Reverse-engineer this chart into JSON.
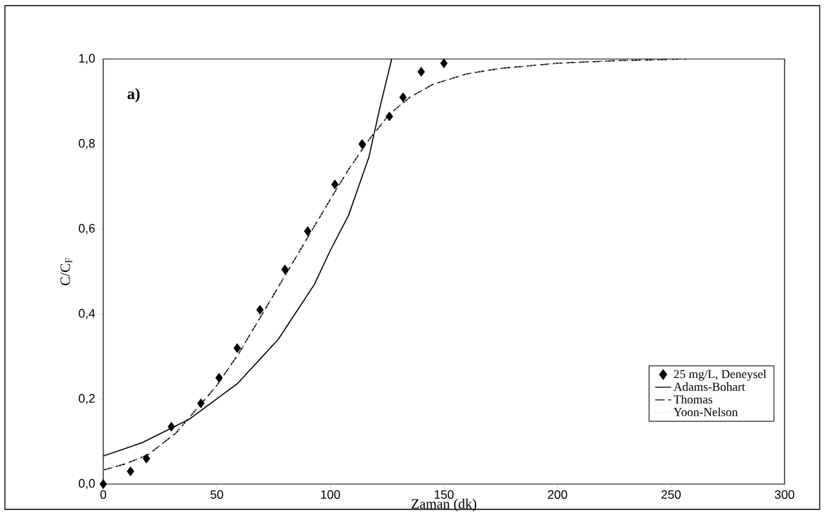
{
  "chart_data": {
    "type": "line",
    "xlabel": "Zaman (dk)",
    "ylabel": "C/C$_{F}$",
    "annotations": [
      "a)"
    ],
    "xlim": [
      0,
      300
    ],
    "ylim": [
      0,
      1
    ],
    "xticks": [
      0,
      50,
      100,
      150,
      200,
      250,
      300
    ],
    "yticks": [
      {
        "value": 0,
        "label": "0,0"
      },
      {
        "value": 0.2,
        "label": "0,2"
      },
      {
        "value": 0.4,
        "label": "0,4"
      },
      {
        "value": 0.6,
        "label": "0,6"
      },
      {
        "value": 0.8,
        "label": "0,8"
      },
      {
        "value": 1,
        "label": "1,0"
      }
    ],
    "legend": "bottom right",
    "series": [
      {
        "name": "25 mg/L, Deneysel",
        "type": "scatter",
        "marker": "diamond",
        "color": "#000000",
        "x": [
          0,
          12,
          19,
          30,
          43,
          51,
          59,
          69,
          80,
          90,
          102,
          114,
          126,
          132,
          140,
          150
        ],
        "values": [
          0.0,
          0.03,
          0.06,
          0.135,
          0.19,
          0.25,
          0.32,
          0.41,
          0.505,
          0.595,
          0.705,
          0.8,
          0.865,
          0.91,
          0.97,
          0.99
        ]
      },
      {
        "name": "Adams-Bohart",
        "type": "line",
        "line_style": "solid",
        "color": "#000000",
        "x": [
          0,
          17,
          38,
          59,
          77,
          93,
          100,
          108,
          117,
          122,
          127
        ],
        "values": [
          0.066,
          0.097,
          0.153,
          0.236,
          0.34,
          0.47,
          0.55,
          0.632,
          0.77,
          0.89,
          1.0
        ]
      },
      {
        "name": "Thomas",
        "type": "line",
        "line_style": "dashed",
        "color": "#000000",
        "x": [
          0,
          10,
          20,
          32,
          50,
          60,
          70,
          80,
          90,
          100,
          108,
          117,
          126,
          135,
          145,
          160,
          175,
          200,
          225,
          257
        ],
        "values": [
          0.033,
          0.048,
          0.07,
          0.12,
          0.232,
          0.31,
          0.4,
          0.49,
          0.58,
          0.67,
          0.74,
          0.81,
          0.87,
          0.91,
          0.94,
          0.965,
          0.978,
          0.99,
          0.996,
          1.0
        ]
      },
      {
        "name": "Yoon-Nelson",
        "type": "line",
        "line_style": "dotted",
        "color": "#c8c8c8",
        "x": [
          0,
          10,
          20,
          32,
          50,
          60,
          70,
          80,
          90,
          100,
          108,
          117,
          126,
          135,
          145,
          160,
          175,
          200,
          225,
          257
        ],
        "values": [
          0.033,
          0.048,
          0.07,
          0.12,
          0.232,
          0.31,
          0.4,
          0.49,
          0.58,
          0.67,
          0.74,
          0.81,
          0.87,
          0.91,
          0.94,
          0.965,
          0.978,
          0.99,
          0.996,
          1.0
        ]
      }
    ]
  }
}
